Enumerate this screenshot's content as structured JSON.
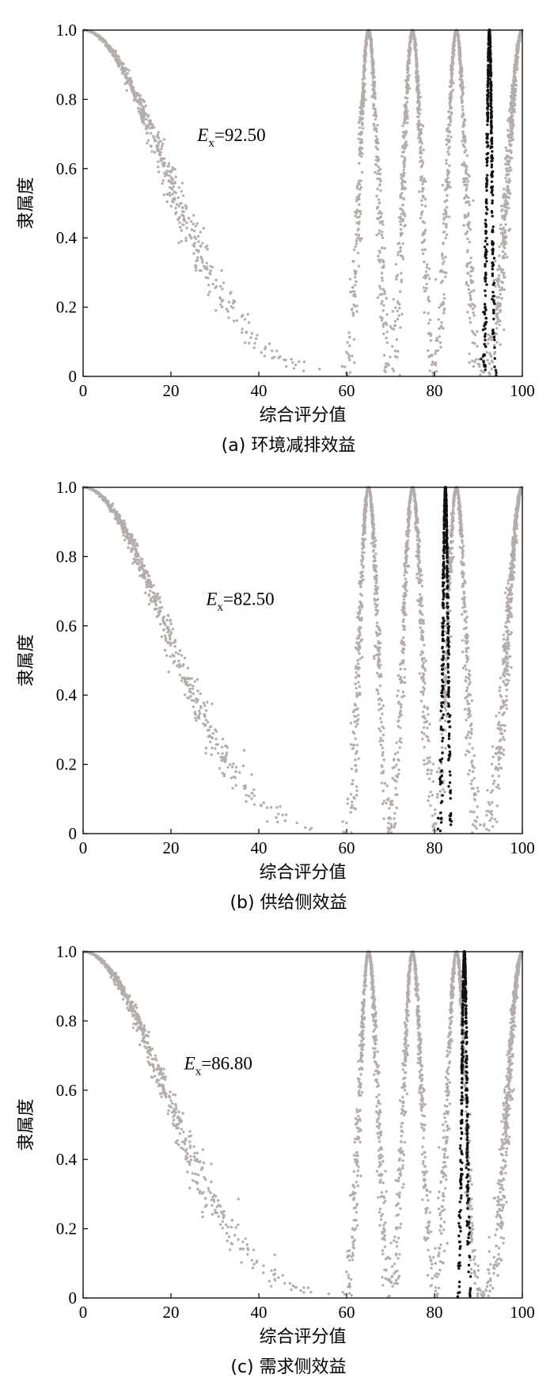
{
  "chart_data": [
    {
      "type": "scatter",
      "title": "",
      "caption": "(a) 环境减排效益",
      "xlabel": "综合评分值",
      "ylabel": "隶属度",
      "xlim": [
        0,
        100
      ],
      "ylim": [
        0,
        1.0
      ],
      "xticks": [
        "0",
        "20",
        "40",
        "60",
        "80",
        "100"
      ],
      "yticks": [
        "0",
        "0.2",
        "0.4",
        "0.6",
        "0.8",
        "1.0"
      ],
      "annotation": {
        "symbol": "E",
        "subscript": "x",
        "text": "=92.50",
        "at": [
          26,
          0.68
        ]
      },
      "grid": false,
      "series": [
        {
          "kind": "membership-clouds",
          "color": "#b3aeac",
          "clouds": [
            {
              "ex": 0,
              "en": 18.5,
              "he": 0.9,
              "side": "right"
            },
            {
              "ex": 65,
              "en": 2.0,
              "he": 0.3
            },
            {
              "ex": 75,
              "en": 2.0,
              "he": 0.3
            },
            {
              "ex": 85,
              "en": 2.0,
              "he": 0.3
            },
            {
              "ex": 100,
              "en": 3.2,
              "he": 0.4,
              "side": "left"
            }
          ]
        },
        {
          "kind": "membership-cloud",
          "color": "#111111",
          "ex": 92.5,
          "en": 0.55,
          "he": 0.1
        }
      ]
    },
    {
      "type": "scatter",
      "title": "",
      "caption": "(b) 供给侧效益",
      "xlabel": "综合评分值",
      "ylabel": "隶属度",
      "xlim": [
        0,
        100
      ],
      "ylim": [
        0,
        1.0
      ],
      "xticks": [
        "0",
        "20",
        "40",
        "60",
        "80",
        "100"
      ],
      "yticks": [
        "0",
        "0.2",
        "0.4",
        "0.6",
        "0.8",
        "1.0"
      ],
      "annotation": {
        "symbol": "E",
        "subscript": "x",
        "text": "=82.50",
        "at": [
          28,
          0.66
        ]
      },
      "grid": false,
      "series": [
        {
          "kind": "membership-clouds",
          "color": "#b3aeac",
          "clouds": [
            {
              "ex": 0,
              "en": 18.5,
              "he": 0.9,
              "side": "right"
            },
            {
              "ex": 65,
              "en": 2.0,
              "he": 0.3
            },
            {
              "ex": 75,
              "en": 2.0,
              "he": 0.3
            },
            {
              "ex": 85,
              "en": 2.0,
              "he": 0.3
            },
            {
              "ex": 100,
              "en": 3.2,
              "he": 0.4,
              "side": "left"
            }
          ]
        },
        {
          "kind": "membership-cloud",
          "color": "#111111",
          "ex": 82.5,
          "en": 0.55,
          "he": 0.1
        }
      ]
    },
    {
      "type": "scatter",
      "title": "",
      "caption": "(c) 需求侧效益",
      "xlabel": "综合评分值",
      "ylabel": "隶属度",
      "xlim": [
        0,
        100
      ],
      "ylim": [
        0,
        1.0
      ],
      "xticks": [
        "0",
        "20",
        "40",
        "60",
        "80",
        "100"
      ],
      "yticks": [
        "0",
        "0.2",
        "0.4",
        "0.6",
        "0.8",
        "1.0"
      ],
      "annotation": {
        "symbol": "E",
        "subscript": "x",
        "text": "=86.80",
        "at": [
          23,
          0.66
        ]
      },
      "grid": false,
      "series": [
        {
          "kind": "membership-clouds",
          "color": "#b3aeac",
          "clouds": [
            {
              "ex": 0,
              "en": 18.5,
              "he": 0.9,
              "side": "right"
            },
            {
              "ex": 65,
              "en": 2.0,
              "he": 0.3
            },
            {
              "ex": 75,
              "en": 2.0,
              "he": 0.3
            },
            {
              "ex": 85,
              "en": 2.0,
              "he": 0.3
            },
            {
              "ex": 100,
              "en": 3.2,
              "he": 0.4,
              "side": "left"
            }
          ]
        },
        {
          "kind": "membership-cloud",
          "color": "#111111",
          "ex": 86.8,
          "en": 0.55,
          "he": 0.1
        }
      ]
    }
  ]
}
